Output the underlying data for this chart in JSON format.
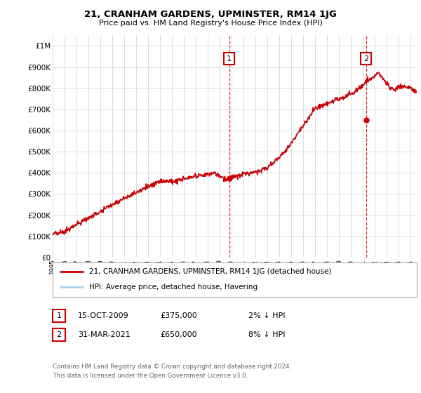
{
  "title": "21, CRANHAM GARDENS, UPMINSTER, RM14 1JG",
  "subtitle": "Price paid vs. HM Land Registry's House Price Index (HPI)",
  "hpi_color": "#a8d0f0",
  "price_color": "#cc0000",
  "background_color": "#ffffff",
  "grid_color": "#d0d0d0",
  "legend_label_price": "21, CRANHAM GARDENS, UPMINSTER, RM14 1JG (detached house)",
  "legend_label_hpi": "HPI: Average price, detached house, Havering",
  "annotation1_label": "1",
  "annotation1_date": "15-OCT-2009",
  "annotation1_price": "£375,000",
  "annotation1_pct": "2% ↓ HPI",
  "annotation2_label": "2",
  "annotation2_date": "31-MAR-2021",
  "annotation2_price": "£650,000",
  "annotation2_pct": "8% ↓ HPI",
  "footer": "Contains HM Land Registry data © Crown copyright and database right 2024.\nThis data is licensed under the Open Government Licence v3.0.",
  "ylim": [
    0,
    1050000
  ],
  "yticks": [
    0,
    100000,
    200000,
    300000,
    400000,
    500000,
    600000,
    700000,
    800000,
    900000,
    1000000
  ],
  "ytick_labels": [
    "£0",
    "£100K",
    "£200K",
    "£300K",
    "£400K",
    "£500K",
    "£600K",
    "£700K",
    "£800K",
    "£900K",
    "£1M"
  ],
  "year_start": 1995,
  "year_end": 2025,
  "sale1_year": 2009.79,
  "sale1_price": 375000,
  "sale2_year": 2021.25,
  "sale2_price": 650000
}
